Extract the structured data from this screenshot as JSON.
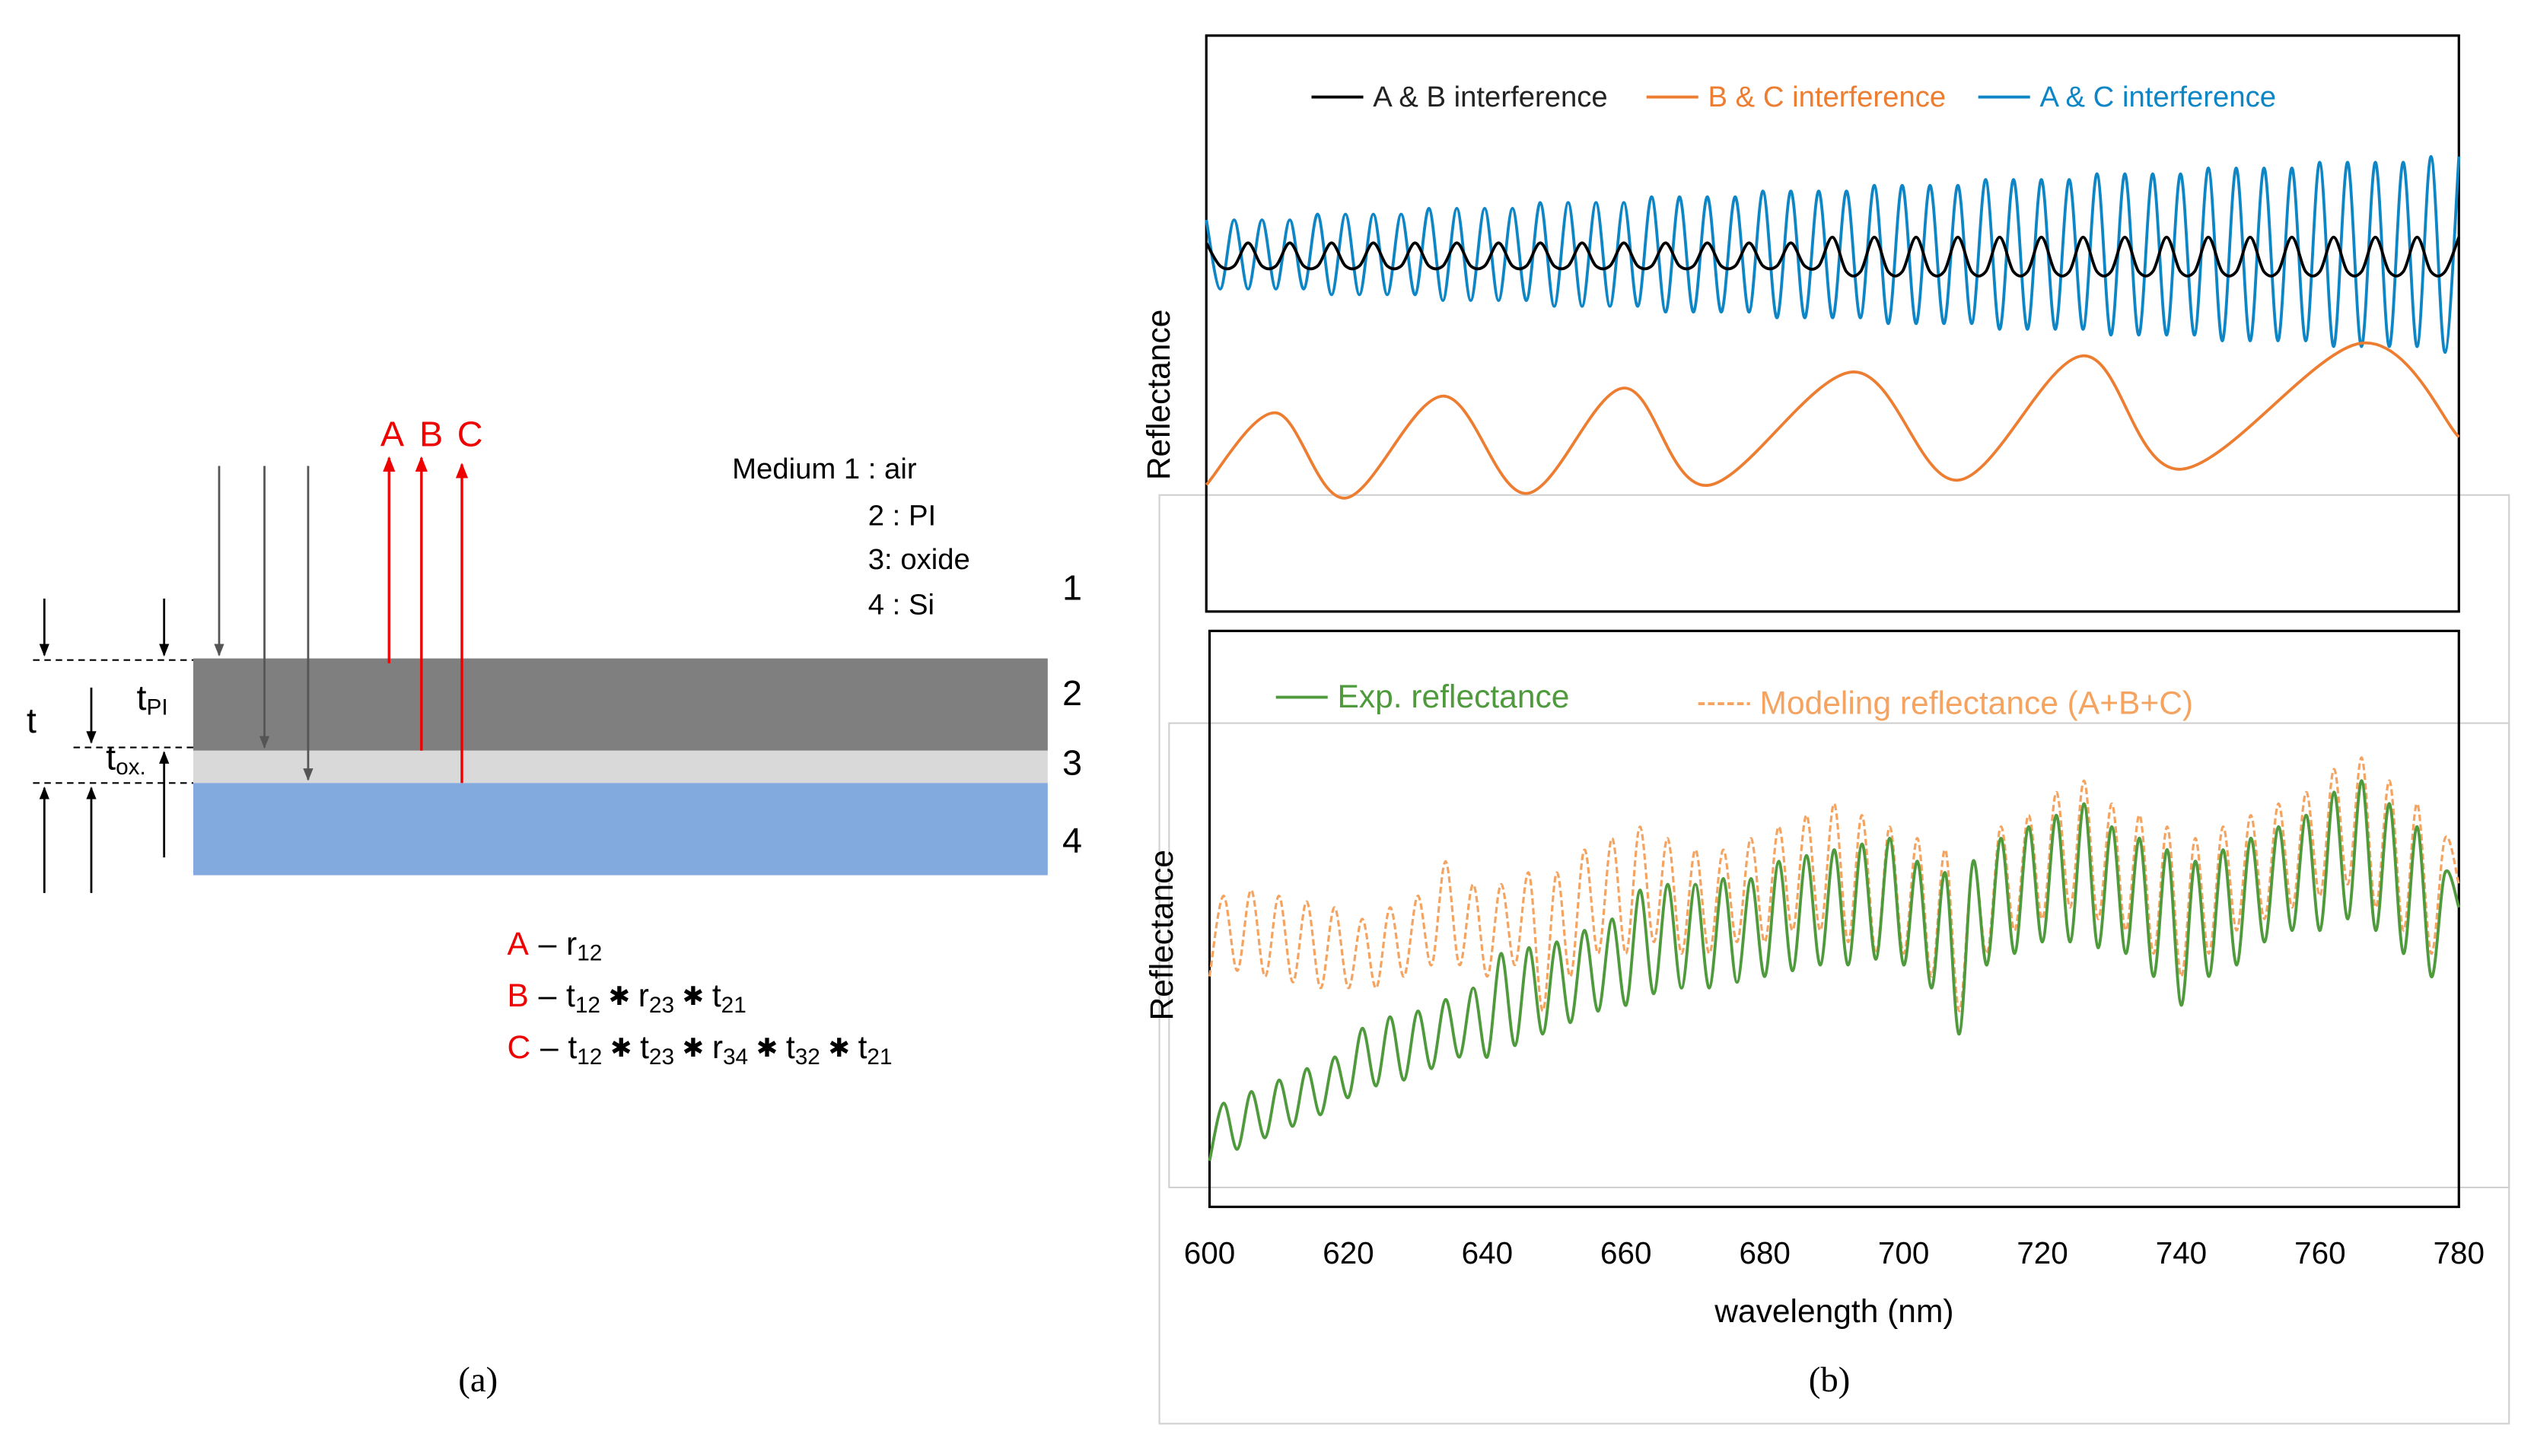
{
  "diagram": {
    "rays": [
      "A",
      "B",
      "C"
    ],
    "media": [
      "Medium 1 : air",
      "2 : PI",
      "3: oxide",
      "4 : Si"
    ],
    "layers": [
      "1",
      "2",
      "3",
      "4"
    ],
    "thickness": {
      "total": "t",
      "pi": {
        "base": "t",
        "sub": "PI"
      },
      "ox": {
        "base": "t",
        "sub": "ox."
      }
    },
    "dash": "–",
    "times": "✱",
    "formulas": [
      {
        "ray": "A",
        "terms": [
          {
            "base": "r",
            "sub": "12"
          }
        ]
      },
      {
        "ray": "B",
        "terms": [
          {
            "base": "t",
            "sub": "12"
          },
          {
            "base": "r",
            "sub": "23"
          },
          {
            "base": "t",
            "sub": "21"
          }
        ]
      },
      {
        "ray": "C",
        "terms": [
          {
            "base": "t",
            "sub": "12"
          },
          {
            "base": "t",
            "sub": "23"
          },
          {
            "base": "r",
            "sub": "34"
          },
          {
            "base": "t",
            "sub": "32"
          },
          {
            "base": "t",
            "sub": "21"
          }
        ]
      }
    ]
  },
  "captions": [
    "(a)",
    "(b)"
  ],
  "chart_data": [
    {
      "type": "line",
      "xlim": [
        600,
        780
      ],
      "ylim": [
        0,
        100
      ],
      "ylabel": "Reflectance",
      "x": [
        600,
        602,
        604,
        606,
        608,
        610,
        612,
        614,
        616,
        618,
        620,
        622,
        624,
        626,
        628,
        630,
        632,
        634,
        636,
        638,
        640,
        642,
        644,
        646,
        648,
        650,
        652,
        654,
        656,
        658,
        660,
        662,
        664,
        666,
        668,
        670,
        672,
        674,
        676,
        678,
        680,
        682,
        684,
        686,
        688,
        690,
        692,
        694,
        696,
        698,
        700,
        702,
        704,
        706,
        708,
        710,
        712,
        714,
        716,
        718,
        720,
        722,
        724,
        726,
        728,
        730,
        732,
        734,
        736,
        738,
        740,
        742,
        744,
        746,
        748,
        750,
        752,
        754,
        756,
        758,
        760,
        762,
        764,
        766,
        768,
        770,
        772,
        774,
        776,
        778,
        780
      ],
      "series": [
        {
          "name": "A & B interference",
          "color": "#000000",
          "values": [
            64,
            60,
            60,
            64,
            60,
            60,
            64,
            60,
            60,
            64,
            60,
            60,
            64,
            60,
            60,
            64,
            60,
            60,
            64,
            60,
            60,
            64,
            60,
            60,
            64,
            60,
            60,
            64,
            60,
            60,
            64,
            60,
            60,
            64,
            60,
            60,
            64,
            60,
            60,
            64,
            60,
            60,
            64,
            60,
            60,
            65,
            59,
            59,
            65,
            59,
            59,
            65,
            59,
            59,
            65,
            59,
            59,
            65,
            59,
            59,
            65,
            59,
            59,
            65,
            59,
            59,
            65,
            59,
            59,
            65,
            59,
            59,
            65,
            59,
            59,
            65,
            59,
            59,
            65,
            59,
            59,
            65,
            59,
            59,
            65,
            59,
            59,
            65,
            59,
            59,
            65
          ]
        },
        {
          "name": "B & C interference",
          "color": "#ed7d31",
          "x": [
            600,
            610,
            620,
            634,
            646,
            660,
            672,
            693,
            708,
            726,
            740,
            766,
            780
          ],
          "values": [
            22,
            34.5,
            19.7,
            37.4,
            20.5,
            38.8,
            21.9,
            41.6,
            22.8,
            44.4,
            24.7,
            46.6,
            30.3
          ]
        },
        {
          "name": "A & C interference",
          "color": "#0e86c6",
          "values": [
            68,
            56,
            68,
            56,
            68,
            56,
            68,
            56,
            69,
            55,
            69,
            55,
            69,
            55,
            69,
            55,
            70,
            54,
            70,
            54,
            70,
            54,
            70,
            54,
            71,
            53,
            71,
            53,
            71,
            53,
            71,
            53,
            72,
            52,
            72,
            52,
            72,
            52,
            72,
            52,
            73,
            51,
            73,
            51,
            73,
            51,
            73,
            51,
            74,
            50,
            74,
            50,
            74,
            50,
            74,
            50,
            75,
            49,
            75,
            49,
            75,
            49,
            75,
            49,
            76,
            48,
            76,
            48,
            76,
            48,
            76,
            48,
            77,
            47,
            77,
            47,
            77,
            47,
            77,
            47,
            78,
            46,
            78,
            46,
            78,
            46,
            78,
            46,
            79,
            45,
            79
          ]
        }
      ]
    },
    {
      "type": "line",
      "xlim": [
        600,
        780
      ],
      "ylim": [
        0,
        100
      ],
      "ylabel": "Reflectance",
      "xlabel": "wavelength (nm)",
      "xticks": [
        600,
        620,
        640,
        660,
        680,
        700,
        720,
        740,
        760,
        780
      ],
      "x": [
        600,
        602,
        604,
        606,
        608,
        610,
        612,
        614,
        616,
        618,
        620,
        622,
        624,
        626,
        628,
        630,
        632,
        634,
        636,
        638,
        640,
        642,
        644,
        646,
        648,
        650,
        652,
        654,
        656,
        658,
        660,
        662,
        664,
        666,
        668,
        670,
        672,
        674,
        676,
        678,
        680,
        682,
        684,
        686,
        688,
        690,
        692,
        694,
        696,
        698,
        700,
        702,
        704,
        706,
        708,
        710,
        712,
        714,
        716,
        718,
        720,
        722,
        724,
        726,
        728,
        730,
        732,
        734,
        736,
        738,
        740,
        742,
        744,
        746,
        748,
        750,
        752,
        754,
        756,
        758,
        760,
        762,
        764,
        766,
        768,
        770,
        772,
        774,
        776,
        778,
        780
      ],
      "series": [
        {
          "name": "Exp. reflectance",
          "color": "#4e9a3c",
          "values": [
            8,
            18,
            10,
            20,
            12,
            22,
            14,
            24,
            16,
            26,
            19,
            31,
            21,
            33,
            22,
            34,
            24,
            36,
            26,
            38,
            26,
            44,
            28,
            45,
            30,
            46,
            32,
            48,
            34,
            50,
            35,
            55,
            37,
            56,
            38,
            56,
            38,
            57,
            39,
            57,
            40,
            60,
            41,
            61,
            42,
            62,
            42,
            63,
            43,
            64,
            42,
            60,
            38,
            58,
            30,
            60,
            42,
            64,
            44,
            66,
            46,
            68,
            46,
            70,
            45,
            66,
            44,
            64,
            40,
            62,
            35,
            60,
            40,
            62,
            42,
            64,
            46,
            66,
            48,
            68,
            48,
            72,
            50,
            74,
            48,
            70,
            44,
            66,
            40,
            58,
            52
          ]
        },
        {
          "name": "Modeling reflectance (A+B+C)",
          "color": "#f4a460",
          "dashed": true,
          "values": [
            40,
            54,
            41,
            55,
            40,
            54,
            39,
            53,
            38,
            52,
            38,
            50,
            38,
            52,
            40,
            54,
            42,
            60,
            42,
            56,
            40,
            56,
            42,
            58,
            34,
            58,
            40,
            62,
            44,
            64,
            44,
            66,
            46,
            64,
            44,
            62,
            44,
            62,
            46,
            64,
            46,
            66,
            48,
            68,
            48,
            70,
            46,
            68,
            44,
            66,
            44,
            64,
            40,
            62,
            34,
            60,
            44,
            66,
            48,
            68,
            50,
            72,
            52,
            74,
            50,
            70,
            48,
            68,
            44,
            66,
            40,
            64,
            44,
            66,
            48,
            68,
            50,
            70,
            52,
            72,
            54,
            76,
            56,
            78,
            52,
            74,
            48,
            70,
            44,
            64,
            56
          ]
        }
      ]
    }
  ]
}
